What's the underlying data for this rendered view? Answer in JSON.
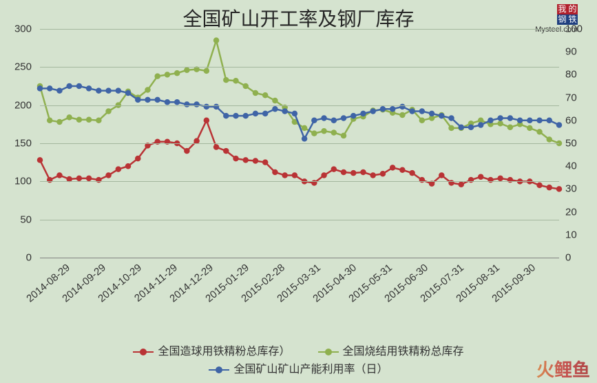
{
  "title": "全国矿山开工率及钢厂库存",
  "logo": {
    "row1": [
      "我",
      "的"
    ],
    "row2": [
      "钢",
      "铁"
    ],
    "sub": "Mysteel.com",
    "bg1": "#b0202c",
    "bg2": "#1f3f7f"
  },
  "watermark": "火鲤鱼",
  "background_color": "#d5e3cf",
  "grid_color": "#a4b79e",
  "axis_color": "#808080",
  "text_color": "#333333",
  "title_fontsize": 28,
  "axis_fontsize": 15,
  "legend_fontsize": 16,
  "y_left": {
    "min": 0,
    "max": 300,
    "ticks": [
      0,
      50,
      100,
      150,
      200,
      250,
      300
    ]
  },
  "y_right": {
    "min": 0,
    "max": 100,
    "ticks": [
      0,
      10,
      20,
      30,
      40,
      50,
      60,
      70,
      80,
      90,
      100
    ]
  },
  "x_labels": [
    "2014-08-29",
    "2014-09-29",
    "2014-10-29",
    "2014-11-29",
    "2014-12-29",
    "2015-01-29",
    "2015-02-28",
    "2015-03-31",
    "2015-04-30",
    "2015-05-31",
    "2015-06-30",
    "2015-07-31",
    "2015-08-31",
    "2015-09-30"
  ],
  "x_points": 30,
  "x_major_every": 2,
  "x_major_offset": 1,
  "series": [
    {
      "name": "全国造球用铁精粉总库存）",
      "color": "#b93335",
      "axis": "left",
      "data": [
        128,
        102,
        108,
        103,
        104,
        104,
        102,
        108,
        116,
        120,
        130,
        147,
        152,
        152,
        150,
        140,
        153,
        180,
        145,
        140,
        130,
        128,
        127,
        125,
        112,
        108,
        108,
        100,
        98,
        108,
        116,
        112,
        111,
        112,
        108,
        110,
        118,
        115,
        111,
        102,
        97,
        108,
        98,
        96,
        102,
        106,
        102,
        104,
        102,
        100,
        100,
        95,
        92,
        90
      ]
    },
    {
      "name": "全国烧结用铁精粉总库存",
      "color": "#8fb04f",
      "axis": "left",
      "data": [
        225,
        180,
        178,
        184,
        181,
        181,
        180,
        192,
        200,
        218,
        210,
        220,
        238,
        240,
        242,
        246,
        247,
        245,
        285,
        233,
        232,
        225,
        216,
        213,
        206,
        197,
        178,
        170,
        163,
        166,
        164,
        160,
        182,
        185,
        193,
        194,
        190,
        187,
        194,
        180,
        183,
        187,
        170,
        170,
        176,
        180,
        175,
        176,
        171,
        175,
        170,
        165,
        155,
        150
      ]
    },
    {
      "name": "全国矿山矿山产能利用率（日）",
      "color": "#3f64a6",
      "axis": "right",
      "data": [
        74,
        74,
        73,
        75,
        75,
        74,
        73,
        73,
        73,
        72,
        69,
        69,
        69,
        68,
        68,
        67,
        67,
        66,
        66,
        62,
        62,
        62,
        63,
        63,
        65,
        64,
        63,
        52,
        60,
        61,
        60,
        61,
        62,
        63,
        64,
        65,
        65,
        66,
        64,
        64,
        63,
        62,
        61,
        57,
        57,
        58,
        60,
        61,
        61,
        60,
        60,
        60,
        60,
        58
      ]
    }
  ],
  "legend_layout": [
    [
      0,
      1
    ],
    [
      2
    ]
  ]
}
